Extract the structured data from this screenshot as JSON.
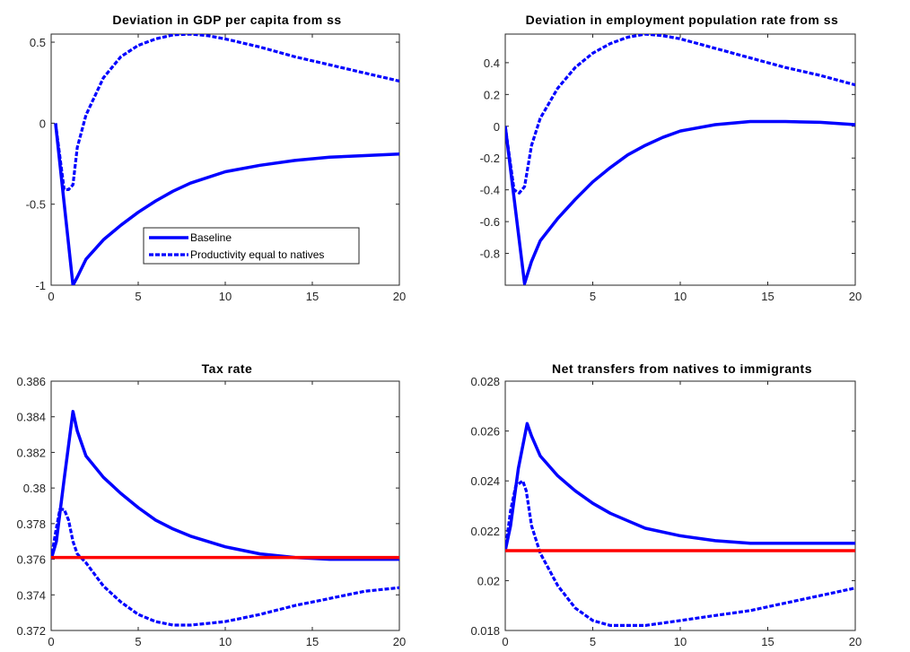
{
  "chart_data": [
    {
      "type": "line",
      "title": "Deviation in GDP per capita from ss",
      "xlabel": "",
      "ylabel": "",
      "xlim": [
        0,
        20
      ],
      "ylim": [
        -1,
        0.55
      ],
      "xticks": [
        0,
        5,
        10,
        15,
        20
      ],
      "yticks": [
        -1,
        -0.5,
        0,
        0.5
      ],
      "ytick_labels": [
        "-1",
        "-0.5",
        "0",
        "0.5"
      ],
      "legend": {
        "placement": "lower-center",
        "entries": [
          "Baseline",
          "Productivity equal to natives"
        ]
      },
      "series": [
        {
          "name": "Baseline",
          "style": "solid",
          "color": "#0000ff",
          "x": [
            0.25,
            1.25,
            1.5,
            2,
            3,
            4,
            5,
            6,
            7,
            8,
            10,
            12,
            14,
            16,
            18,
            20
          ],
          "y": [
            0,
            -1,
            -0.95,
            -0.84,
            -0.72,
            -0.63,
            -0.55,
            -0.48,
            -0.42,
            -0.37,
            -0.3,
            -0.26,
            -0.23,
            -0.21,
            -0.2,
            -0.19
          ]
        },
        {
          "name": "Productivity equal to natives",
          "style": "dashed",
          "color": "#0000ff",
          "x": [
            0.25,
            0.75,
            1,
            1.25,
            1.5,
            2,
            3,
            4,
            5,
            6,
            7,
            8,
            9,
            10,
            12,
            14,
            16,
            18,
            20
          ],
          "y": [
            0,
            -0.41,
            -0.41,
            -0.38,
            -0.15,
            0.05,
            0.28,
            0.41,
            0.48,
            0.52,
            0.545,
            0.55,
            0.54,
            0.52,
            0.47,
            0.41,
            0.36,
            0.31,
            0.26
          ]
        }
      ]
    },
    {
      "type": "line",
      "title": "Deviation in employment population rate from ss",
      "xlabel": "",
      "ylabel": "",
      "xlim": [
        0,
        20
      ],
      "ylim": [
        -1,
        0.58
      ],
      "xticks": [
        5,
        10,
        15,
        20
      ],
      "yticks": [
        -0.8,
        -0.6,
        -0.4,
        -0.2,
        0,
        0.2,
        0.4
      ],
      "ytick_labels": [
        "-0.8",
        "-0.6",
        "-0.4",
        "-0.2",
        "0",
        "0.2",
        "0.4"
      ],
      "series": [
        {
          "name": "Baseline",
          "style": "solid",
          "color": "#0000ff",
          "x": [
            0,
            1.1,
            1.5,
            2,
            3,
            4,
            5,
            6,
            7,
            8,
            9,
            10,
            12,
            14,
            16,
            18,
            20
          ],
          "y": [
            0,
            -0.99,
            -0.85,
            -0.72,
            -0.58,
            -0.46,
            -0.35,
            -0.26,
            -0.18,
            -0.12,
            -0.07,
            -0.03,
            0.01,
            0.03,
            0.03,
            0.025,
            0.01
          ]
        },
        {
          "name": "Productivity equal to natives",
          "style": "dashed",
          "color": "#0000ff",
          "x": [
            0,
            0.5,
            0.8,
            1.1,
            1.5,
            2,
            3,
            4,
            5,
            6,
            7,
            8,
            9,
            10,
            12,
            14,
            16,
            18,
            20
          ],
          "y": [
            0,
            -0.4,
            -0.42,
            -0.38,
            -0.12,
            0.05,
            0.24,
            0.37,
            0.46,
            0.52,
            0.56,
            0.58,
            0.57,
            0.55,
            0.49,
            0.43,
            0.37,
            0.32,
            0.26
          ]
        }
      ]
    },
    {
      "type": "line",
      "title": "Tax rate",
      "xlabel": "",
      "ylabel": "",
      "xlim": [
        0,
        20
      ],
      "ylim": [
        0.372,
        0.386
      ],
      "xticks": [
        0,
        5,
        10,
        15,
        20
      ],
      "yticks": [
        0.372,
        0.374,
        0.376,
        0.378,
        0.38,
        0.382,
        0.384,
        0.386
      ],
      "ytick_labels": [
        "0.372",
        "0.374",
        "0.376",
        "0.378",
        "0.38",
        "0.382",
        "0.384",
        "0.386"
      ],
      "series": [
        {
          "name": "Baseline",
          "style": "solid",
          "color": "#0000ff",
          "x": [
            0,
            0.3,
            0.75,
            1.25,
            1.5,
            2,
            3,
            4,
            5,
            6,
            7,
            8,
            10,
            12,
            14,
            16,
            18,
            20
          ],
          "y": [
            0.376,
            0.377,
            0.3805,
            0.3843,
            0.3832,
            0.3818,
            0.3806,
            0.3797,
            0.3789,
            0.3782,
            0.3777,
            0.3773,
            0.3767,
            0.3763,
            0.3761,
            0.376,
            0.376,
            0.376
          ]
        },
        {
          "name": "Productivity equal to natives",
          "style": "dashed",
          "color": "#0000ff",
          "x": [
            0,
            0.25,
            0.5,
            0.75,
            1,
            1.25,
            1.5,
            2,
            3,
            4,
            5,
            6,
            7,
            8,
            9,
            10,
            12,
            14,
            16,
            18,
            20
          ],
          "y": [
            0.376,
            0.3775,
            0.3788,
            0.3788,
            0.3782,
            0.377,
            0.3763,
            0.3758,
            0.3745,
            0.3736,
            0.3729,
            0.3725,
            0.3723,
            0.3723,
            0.3724,
            0.3725,
            0.3729,
            0.3734,
            0.3738,
            0.3742,
            0.3744
          ]
        },
        {
          "name": "",
          "style": "solid",
          "color": "#ff0000",
          "x": [
            0,
            20
          ],
          "y": [
            0.3761,
            0.3761
          ]
        }
      ]
    },
    {
      "type": "line",
      "title": "Net transfers from natives to immigrants",
      "xlabel": "",
      "ylabel": "",
      "xlim": [
        0,
        20
      ],
      "ylim": [
        0.018,
        0.028
      ],
      "xticks": [
        0,
        5,
        10,
        15,
        20
      ],
      "yticks": [
        0.018,
        0.02,
        0.022,
        0.024,
        0.026,
        0.028
      ],
      "ytick_labels": [
        "0.018",
        "0.02",
        "0.022",
        "0.024",
        "0.026",
        "0.028"
      ],
      "series": [
        {
          "name": "Baseline",
          "style": "solid",
          "color": "#0000ff",
          "x": [
            0,
            0.3,
            0.75,
            1.25,
            1.5,
            2,
            3,
            4,
            5,
            6,
            7,
            8,
            10,
            12,
            14,
            16,
            18,
            20
          ],
          "y": [
            0.0212,
            0.0222,
            0.0245,
            0.0263,
            0.0258,
            0.025,
            0.0242,
            0.0236,
            0.0231,
            0.0227,
            0.0224,
            0.0221,
            0.0218,
            0.0216,
            0.0215,
            0.0215,
            0.0215,
            0.0215
          ]
        },
        {
          "name": "Productivity equal to natives",
          "style": "dashed",
          "color": "#0000ff",
          "x": [
            0,
            0.3,
            0.6,
            1,
            1.2,
            1.5,
            2,
            3,
            4,
            5,
            6,
            7,
            8,
            9,
            10,
            12,
            14,
            16,
            18,
            20
          ],
          "y": [
            0.0212,
            0.0228,
            0.0238,
            0.024,
            0.0236,
            0.0222,
            0.0211,
            0.0198,
            0.0189,
            0.0184,
            0.0182,
            0.0182,
            0.0182,
            0.0183,
            0.0184,
            0.0186,
            0.0188,
            0.0191,
            0.0194,
            0.0197
          ]
        },
        {
          "name": "",
          "style": "solid",
          "color": "#ff0000",
          "x": [
            0,
            20
          ],
          "y": [
            0.0212,
            0.0212
          ]
        }
      ]
    }
  ]
}
